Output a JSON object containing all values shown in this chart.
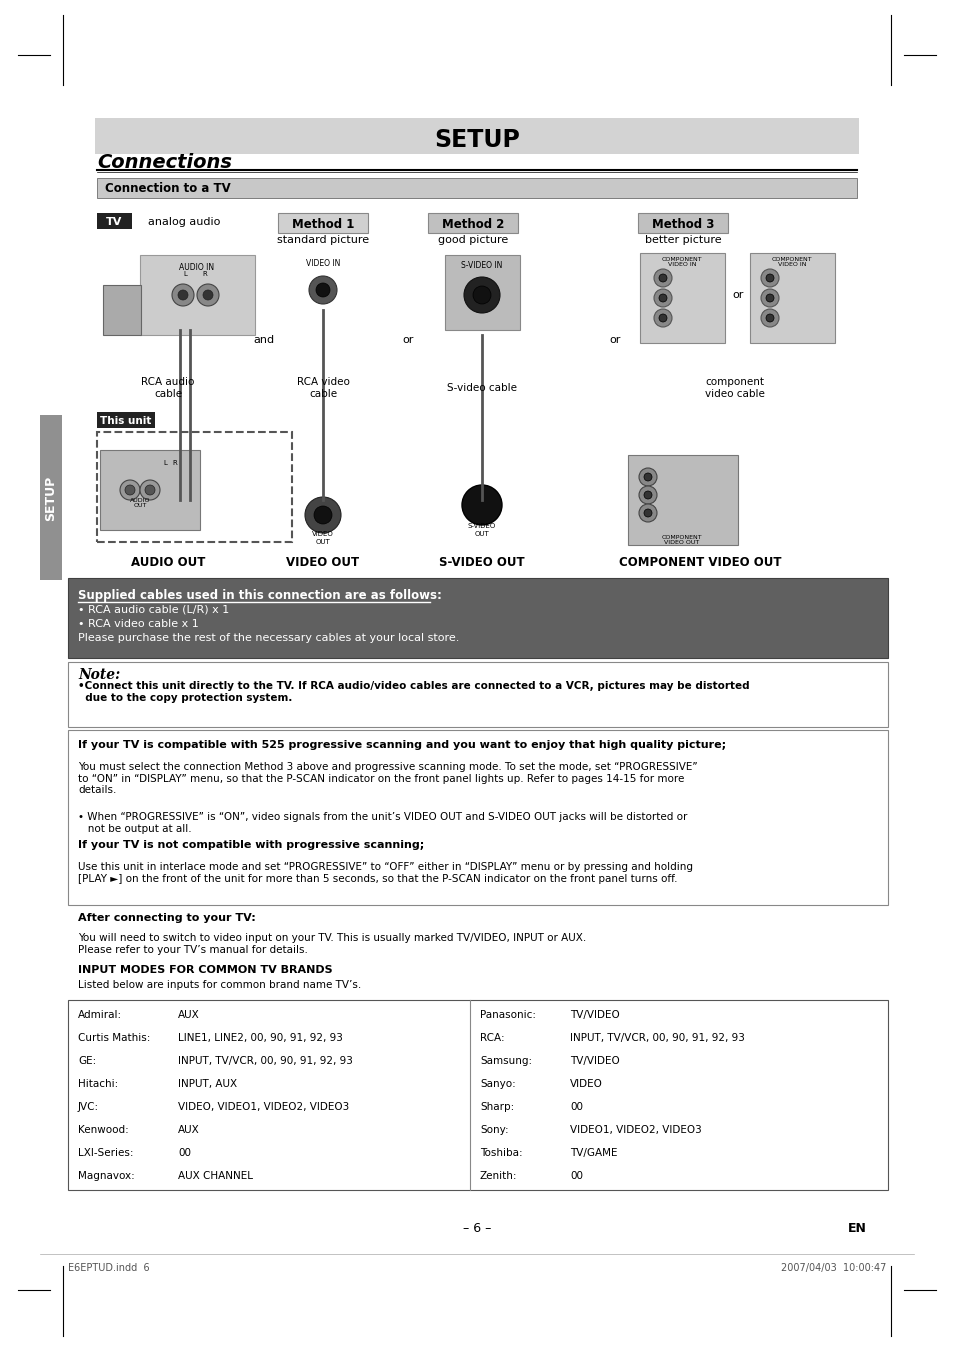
{
  "title": "SETUP",
  "section": "Connections",
  "subsection": "Connection to a TV",
  "bg_color": "#ffffff",
  "header_bg": "#d3d3d3",
  "subheader_bg": "#5a5a7a",
  "supplied_cables_bg": "#606060",
  "setup_sidebar_bg": "#909090",
  "method1_label": "Method 1",
  "method2_label": "Method 2",
  "method3_label": "Method 3",
  "method1_desc": "standard picture",
  "method2_desc": "good picture",
  "method3_desc": "better picture",
  "tv_label": "TV",
  "this_unit_label": "This unit",
  "analog_audio_label": "analog audio",
  "and_label": "and",
  "or_label1": "or",
  "or_label2": "or",
  "rca_audio_label": "RCA audio\ncable",
  "rca_video_label": "RCA video\ncable",
  "svideo_cable_label": "S-video cable",
  "component_label": "component\nvideo cable",
  "audio_out_label": "AUDIO OUT",
  "video_out_label": "VIDEO OUT",
  "svideo_out_label": "S-VIDEO OUT",
  "component_out_label": "COMPONENT VIDEO OUT",
  "supplied_title": "Supplied cables used in this connection are as follows:",
  "supplied_items": [
    "• RCA audio cable (L/R) x 1",
    "• RCA video cable x 1",
    "Please purchase the rest of the necessary cables at your local store."
  ],
  "note_title": "Note:",
  "note_body": "•Connect this unit directly to the TV. If RCA audio/video cables are connected to a VCR, pictures may be distorted\n  due to the copy protection system.",
  "prog_compat_title": "If your TV is compatible with 525 progressive scanning and you want to enjoy that high quality picture;",
  "prog_compat_body1": "You must select the connection Method 3 above and progressive scanning mode. To set the mode, set “PROGRESSIVE”\nto “ON” in “DISPLAY” menu, so that the P-SCAN indicator on the front panel lights up. Refer to pages 14-15 for more\ndetails.",
  "prog_compat_body2": "• When “PROGRESSIVE” is “ON”, video signals from the unit’s VIDEO OUT and S-VIDEO OUT jacks will be distorted or\n   not be output at all.",
  "prog_not_title": "If your TV is not compatible with progressive scanning;",
  "prog_not_body": "Use this unit in interlace mode and set “PROGRESSIVE” to “OFF” either in “DISPLAY” menu or by pressing and holding\n[PLAY ►] on the front of the unit for more than 5 seconds, so that the P-SCAN indicator on the front panel turns off.",
  "after_title": "After connecting to your TV:",
  "after_body": "You will need to switch to video input on your TV. This is usually marked TV/VIDEO, INPUT or AUX.\nPlease refer to your TV’s manual for details.",
  "input_modes_title": "INPUT MODES FOR COMMON TV BRANDS",
  "input_modes_subtitle": "Listed below are inputs for common brand name TV’s.",
  "tv_brands_left": [
    [
      "Admiral:",
      "AUX"
    ],
    [
      "Curtis Mathis:",
      "LINE1, LINE2, 00, 90, 91, 92, 93"
    ],
    [
      "GE:",
      "INPUT, TV/VCR, 00, 90, 91, 92, 93"
    ],
    [
      "Hitachi:",
      "INPUT, AUX"
    ],
    [
      "JVC:",
      "VIDEO, VIDEO1, VIDEO2, VIDEO3"
    ],
    [
      "Kenwood:",
      "AUX"
    ],
    [
      "LXI-Series:",
      "00"
    ],
    [
      "Magnavox:",
      "AUX CHANNEL"
    ]
  ],
  "tv_brands_right": [
    [
      "Panasonic:",
      "TV/VIDEO"
    ],
    [
      "RCA:",
      "INPUT, TV/VCR, 00, 90, 91, 92, 93"
    ],
    [
      "Samsung:",
      "TV/VIDEO"
    ],
    [
      "Sanyo:",
      "VIDEO"
    ],
    [
      "Sharp:",
      "00"
    ],
    [
      "Sony:",
      "VIDEO1, VIDEO2, VIDEO3"
    ],
    [
      "Toshiba:",
      "TV/GAME"
    ],
    [
      "Zenith:",
      "00"
    ]
  ],
  "page_number": "– 6 –",
  "page_en": "EN",
  "footer_left": "E6EPTUD.indd  6",
  "footer_right": "2007/04/03  10:00:47",
  "setup_sidebar_text": "SETUP"
}
